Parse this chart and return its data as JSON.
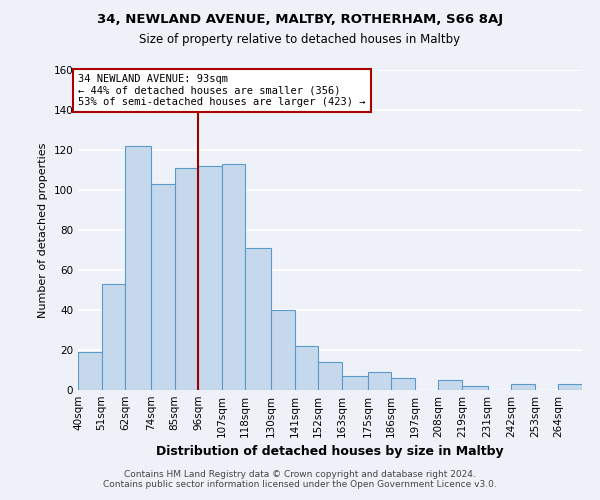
{
  "title1": "34, NEWLAND AVENUE, MALTBY, ROTHERHAM, S66 8AJ",
  "title2": "Size of property relative to detached houses in Maltby",
  "xlabel": "Distribution of detached houses by size in Maltby",
  "ylabel": "Number of detached properties",
  "bar_labels": [
    "40sqm",
    "51sqm",
    "62sqm",
    "74sqm",
    "85sqm",
    "96sqm",
    "107sqm",
    "118sqm",
    "130sqm",
    "141sqm",
    "152sqm",
    "163sqm",
    "175sqm",
    "186sqm",
    "197sqm",
    "208sqm",
    "219sqm",
    "231sqm",
    "242sqm",
    "253sqm",
    "264sqm"
  ],
  "bar_values": [
    19,
    53,
    122,
    103,
    111,
    112,
    113,
    71,
    40,
    22,
    14,
    7,
    9,
    6,
    0,
    5,
    2,
    0,
    3,
    0,
    3
  ],
  "bar_color": "#c6d9ec",
  "bar_edge_color": "#5a9ac8",
  "ref_line_color": "#990000",
  "annotation_text": "34 NEWLAND AVENUE: 93sqm\n← 44% of detached houses are smaller (356)\n53% of semi-detached houses are larger (423) →",
  "annotation_box_facecolor": "#ffffff",
  "annotation_box_edgecolor": "#aa0000",
  "ylim": [
    0,
    160
  ],
  "yticks": [
    0,
    20,
    40,
    60,
    80,
    100,
    120,
    140,
    160
  ],
  "footnote1": "Contains HM Land Registry data © Crown copyright and database right 2024.",
  "footnote2": "Contains public sector information licensed under the Open Government Licence v3.0.",
  "bg_color": "#eef2f8",
  "grid_color": "#ffffff",
  "title1_fontsize": 9.5,
  "title2_fontsize": 8.5,
  "xlabel_fontsize": 9,
  "ylabel_fontsize": 8,
  "tick_fontsize": 7.5,
  "footnote_fontsize": 6.5
}
